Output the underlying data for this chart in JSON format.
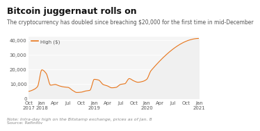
{
  "title": "Bitcoin juggernaut rolls on",
  "subtitle": "The cryptocurrency has doubled since breaching $20,000 for the first time in mid-December",
  "legend_label": "High ($)",
  "note": "Note: Intra-day high on the Bitstamp exchange, prices as of Jan. 8",
  "source": "Source: Refinitiv",
  "line_color": "#E8751A",
  "fill_color": "#F0F0F0",
  "background_color": "#FFFFFF",
  "plot_bg_color": "#F5F5F5",
  "ylim": [
    0,
    42000
  ],
  "yticks": [
    0,
    10000,
    20000,
    30000,
    40000
  ],
  "ytick_labels": [
    "0",
    "10,000",
    "20,000",
    "30,000",
    "40,000"
  ],
  "xtick_labels": [
    "Oct\n2017",
    "Jan\n2018",
    "Apr",
    "Jul",
    "Oct",
    "Jan\n2019",
    "Apr",
    "Jul",
    "Oct",
    "Jan\n2020",
    "Apr",
    "Jul",
    "Oct",
    "Jan\n2021"
  ],
  "title_fontsize": 9,
  "subtitle_fontsize": 5.5,
  "axis_fontsize": 5,
  "note_fontsize": 4.5
}
